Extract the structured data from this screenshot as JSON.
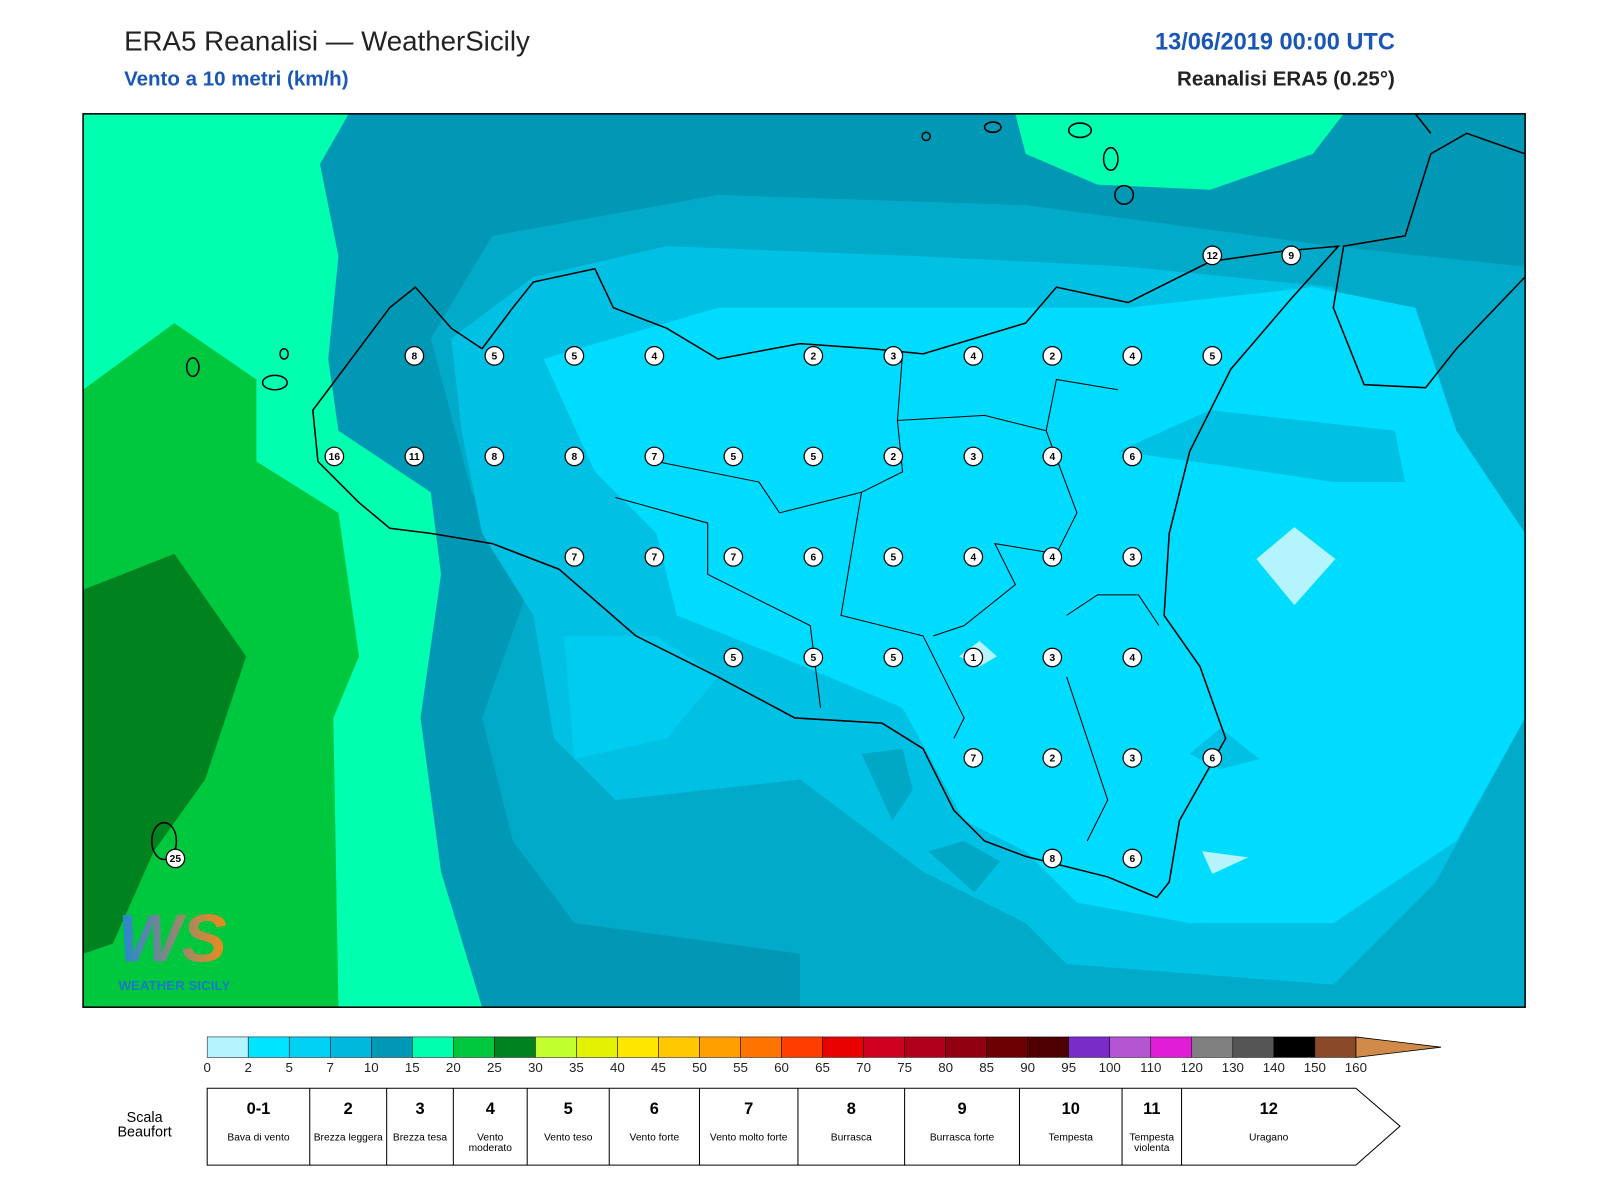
{
  "header": {
    "title": "ERA5 Reanalisi — WeatherSicily",
    "subtitle": "Vento a 10 metri (km/h)",
    "date": "13/06/2019 00:00 UTC",
    "source": "Reanalisi ERA5 (0.25°)"
  },
  "map": {
    "station_values": [
      12,
      9,
      8,
      5,
      5,
      4,
      2,
      3,
      4,
      2,
      4,
      5,
      16,
      11,
      8,
      8,
      7,
      5,
      5,
      2,
      3,
      4,
      6,
      7,
      7,
      7,
      6,
      5,
      4,
      4,
      3,
      5,
      5,
      5,
      1,
      3,
      4,
      7,
      2,
      3,
      6,
      8,
      6,
      25
    ]
  },
  "logo": {
    "mark": "WS",
    "name": "WEATHER SICILY"
  },
  "colorbar": {
    "ticks": [
      0,
      2,
      5,
      7,
      10,
      15,
      20,
      25,
      30,
      35,
      40,
      45,
      50,
      55,
      60,
      65,
      70,
      75,
      80,
      85,
      90,
      95,
      100,
      110,
      120,
      130,
      140,
      150,
      160
    ],
    "colors": [
      "#b3f4ff",
      "#00e4ff",
      "#00d0f2",
      "#00b8dc",
      "#0098b5",
      "#00ffae",
      "#00c83e",
      "#00821e",
      "#c2ff2e",
      "#e2f200",
      "#ffe600",
      "#ffc800",
      "#ffa000",
      "#ff7400",
      "#ff3e00",
      "#e80000",
      "#d00020",
      "#b0001c",
      "#900010",
      "#6c0000",
      "#4e0000",
      "#7a2cc8",
      "#b455d2",
      "#e01ed8",
      "#808080",
      "#555555",
      "#000000",
      "#8a4a2a",
      "#d08a4a"
    ]
  },
  "beaufort": {
    "label": "Scala Beaufort",
    "levels": [
      {
        "force": "0-1",
        "name": "Bava di vento"
      },
      {
        "force": "2",
        "name": "Brezza leggera"
      },
      {
        "force": "3",
        "name": "Brezza tesa"
      },
      {
        "force": "4",
        "name": "Vento moderato"
      },
      {
        "force": "5",
        "name": "Vento teso"
      },
      {
        "force": "6",
        "name": "Vento forte"
      },
      {
        "force": "7",
        "name": "Vento molto forte"
      },
      {
        "force": "8",
        "name": "Burrasca"
      },
      {
        "force": "9",
        "name": "Burrasca forte"
      },
      {
        "force": "10",
        "name": "Tempesta"
      },
      {
        "force": "11",
        "name": "Tempesta violenta"
      },
      {
        "force": "12",
        "name": "Uragano"
      }
    ]
  }
}
